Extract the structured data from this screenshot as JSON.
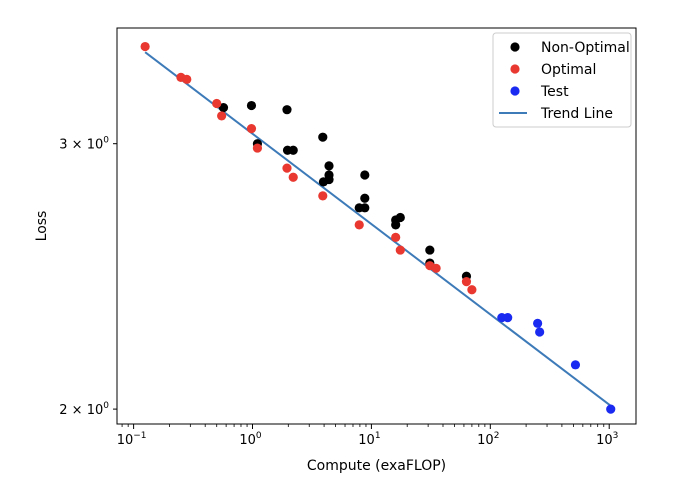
{
  "chart_data": {
    "type": "scatter",
    "title": "",
    "xlabel": "Compute (exaFLOP)",
    "ylabel": "Loss",
    "x_scale": "log",
    "y_scale": "log",
    "xlim": [
      0.0725,
      1680
    ],
    "ylim": [
      1.955,
      3.58
    ],
    "x_ticks": [
      {
        "value": 0.1,
        "base": "10",
        "exp": "−1"
      },
      {
        "value": 1,
        "base": "10",
        "exp": "0"
      },
      {
        "value": 10,
        "base": "10",
        "exp": "1"
      },
      {
        "value": 100,
        "base": "10",
        "exp": "2"
      },
      {
        "value": 1000,
        "base": "10",
        "exp": "3"
      }
    ],
    "y_ticks": [
      {
        "value": 2,
        "base": "2 × 10",
        "exp": "0"
      },
      {
        "value": 3,
        "base": "3 × 10",
        "exp": "0"
      }
    ],
    "legend_position": "top-right",
    "series": [
      {
        "name": "Non-Optimal",
        "color": "#000000",
        "points": [
          [
            0.57,
            3.17
          ],
          [
            0.98,
            3.18
          ],
          [
            1.1,
            3.0
          ],
          [
            1.95,
            3.16
          ],
          [
            1.97,
            2.97
          ],
          [
            2.2,
            2.97
          ],
          [
            3.9,
            3.03
          ],
          [
            4.4,
            2.9
          ],
          [
            4.4,
            2.86
          ],
          [
            4.4,
            2.84
          ],
          [
            3.95,
            2.83
          ],
          [
            8.8,
            2.86
          ],
          [
            8.8,
            2.76
          ],
          [
            7.9,
            2.72
          ],
          [
            8.8,
            2.72
          ],
          [
            16,
            2.67
          ],
          [
            16,
            2.65
          ],
          [
            17.5,
            2.68
          ],
          [
            31,
            2.55
          ],
          [
            31,
            2.5
          ],
          [
            63,
            2.45
          ]
        ]
      },
      {
        "name": "Optimal",
        "color": "#e8382f",
        "points": [
          [
            0.125,
            3.48
          ],
          [
            0.25,
            3.32
          ],
          [
            0.28,
            3.31
          ],
          [
            0.5,
            3.19
          ],
          [
            0.55,
            3.13
          ],
          [
            0.98,
            3.07
          ],
          [
            1.1,
            2.98
          ],
          [
            1.95,
            2.89
          ],
          [
            2.2,
            2.85
          ],
          [
            3.9,
            2.77
          ],
          [
            7.9,
            2.65
          ],
          [
            16,
            2.6
          ],
          [
            17.5,
            2.55
          ],
          [
            31,
            2.49
          ],
          [
            35,
            2.48
          ],
          [
            63,
            2.43
          ],
          [
            70,
            2.4
          ]
        ]
      },
      {
        "name": "Test",
        "color": "#1a2af0",
        "points": [
          [
            125,
            2.3
          ],
          [
            140,
            2.3
          ],
          [
            250,
            2.28
          ],
          [
            260,
            2.25
          ],
          [
            520,
            2.14
          ],
          [
            1030,
            2.0
          ]
        ]
      }
    ],
    "trend_line": {
      "name": "Trend Line",
      "color": "#3d7ab8",
      "points": [
        [
          0.125,
          3.45
        ],
        [
          1030,
          2.01
        ]
      ]
    }
  }
}
